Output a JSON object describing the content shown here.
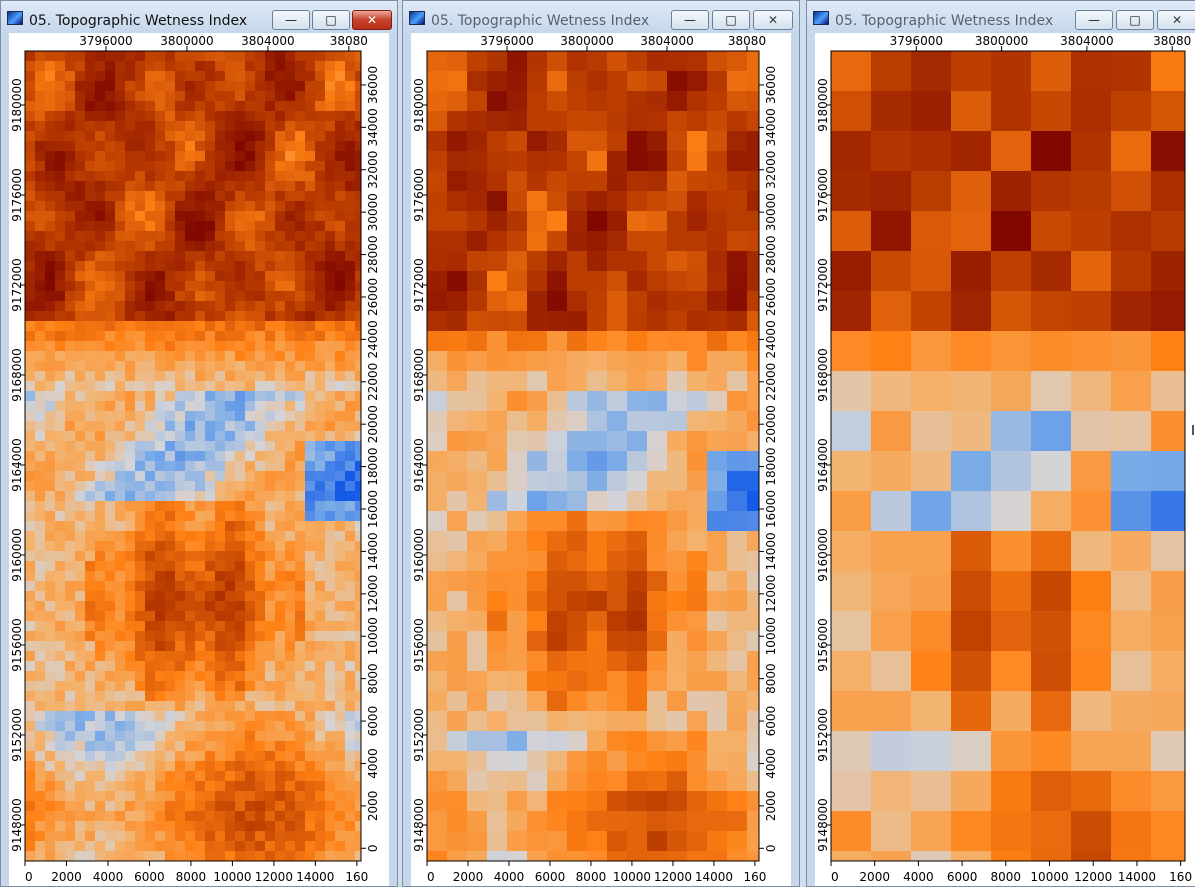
{
  "windows": [
    {
      "title": "05. Topographic Wetness Index",
      "active": true,
      "grid_cells": 10,
      "controls": {
        "minimize": "—",
        "maximize": "□",
        "close": "✕"
      },
      "x_ticks": [
        "3796000",
        "3800000",
        "3804000",
        "38080"
      ],
      "y_ticks": [
        "9180000",
        "9176000",
        "9172000",
        "9168000",
        "9164000",
        "9160000",
        "9156000",
        "9152000",
        "9148000"
      ],
      "bottom_ticks": [
        "0",
        "2000",
        "4000",
        "6000",
        "8000",
        "10000",
        "12000",
        "14000",
        "160"
      ],
      "right_ticks": [
        "36000",
        "34000",
        "32000",
        "30000",
        "28000",
        "26000",
        "24000",
        "22000",
        "20000",
        "18000",
        "16000",
        "14000",
        "12000",
        "10000",
        "8000",
        "6000",
        "4000",
        "2000",
        "0"
      ]
    },
    {
      "title": "05. Topographic Wetness Index",
      "active": false,
      "grid_cells": 20,
      "controls": {
        "minimize": "—",
        "maximize": "□",
        "close": "✕"
      },
      "x_ticks": [
        "3796000",
        "3800000",
        "3804000",
        "38080"
      ],
      "y_ticks": [
        "9180000",
        "9176000",
        "9172000",
        "9168000",
        "9164000",
        "9160000",
        "9156000",
        "9152000",
        "9148000"
      ],
      "bottom_ticks": [
        "0",
        "2000",
        "4000",
        "6000",
        "8000",
        "10000",
        "12000",
        "14000",
        "160"
      ],
      "right_ticks": [
        "36000",
        "34000",
        "32000",
        "30000",
        "28000",
        "26000",
        "24000",
        "22000",
        "20000",
        "18000",
        "16000",
        "14000",
        "12000",
        "10000",
        "8000",
        "6000",
        "4000",
        "2000",
        "0"
      ]
    },
    {
      "title": "05. Topographic Wetness Index",
      "active": false,
      "grid_cells": 40,
      "controls": {
        "minimize": "—",
        "maximize": "□",
        "close": "✕"
      },
      "x_ticks": [
        "3796000",
        "3800000",
        "3804000",
        "38080"
      ],
      "y_ticks": [
        "9180000",
        "9176000",
        "9172000",
        "9168000",
        "9164000",
        "9160000",
        "9156000",
        "9152000",
        "9148000"
      ],
      "bottom_ticks": [
        "0",
        "2000",
        "4000",
        "6000",
        "8000",
        "10000",
        "12000",
        "14000",
        "160"
      ],
      "right_ticks": []
    }
  ]
}
